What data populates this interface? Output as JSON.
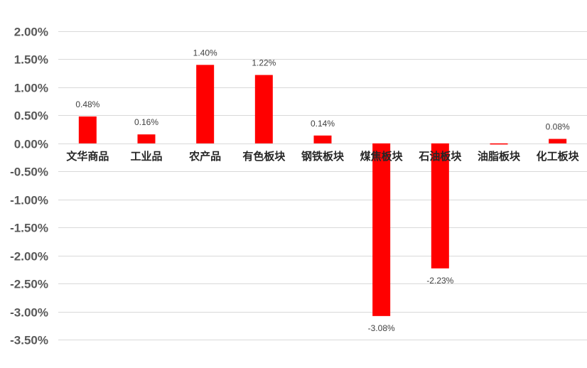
{
  "chart_data": {
    "type": "bar",
    "title": "",
    "xlabel": "",
    "ylabel": "",
    "categories": [
      "文华商品",
      "工业品",
      "农产品",
      "有色板块",
      "钢铁板块",
      "煤焦板块",
      "石油板块",
      "油脂板块",
      "化工板块"
    ],
    "values": [
      0.48,
      0.16,
      1.4,
      1.22,
      0.14,
      -3.08,
      -2.23,
      -0.02,
      0.08
    ],
    "data_labels": [
      "0.48%",
      "0.16%",
      "1.40%",
      "1.22%",
      "0.14%",
      "-3.08%",
      "-2.23%",
      "",
      "0.08%"
    ],
    "ylim": [
      -3.5,
      2.0
    ],
    "yticks": [
      2.0,
      1.5,
      1.0,
      0.5,
      0.0,
      -0.5,
      -1.0,
      -1.5,
      -2.0,
      -2.5,
      -3.0,
      -3.5
    ],
    "ytick_labels": [
      "2.00%",
      "1.50%",
      "1.00%",
      "0.50%",
      "0.00%",
      "-0.50%",
      "-1.00%",
      "-1.50%",
      "-2.00%",
      "-2.50%",
      "-3.00%",
      "-3.50%"
    ],
    "grid": true,
    "legend": "none",
    "bar_color": "#ff0000",
    "grid_color": "#d9d9d9"
  }
}
